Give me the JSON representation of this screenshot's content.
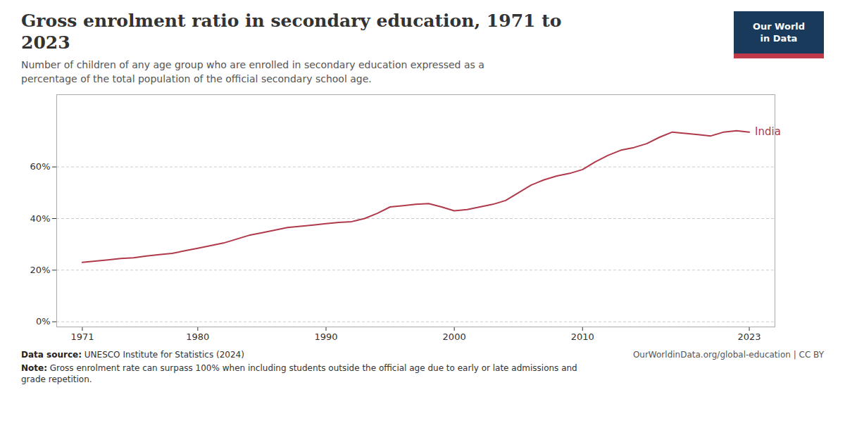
{
  "chart_data": {
    "type": "line",
    "title": "Gross enrolment ratio in secondary education, 1971 to\n2023",
    "subtitle": "Number of children of any age group who are enrolled in secondary education expressed as a\npercentage of the total population of the official secondary school age.",
    "annotations": [
      "Data source: UNESCO Institute for Statistics (2024)",
      "Note: Gross enrolment rate can surpass 100% when including students outside the official age due to early or late admissions and\ngrade repetition.",
      "OurWorldinData.org/global-education | CC BY",
      "Our World\nin Data"
    ],
    "x": [
      1971,
      1972,
      1973,
      1974,
      1975,
      1976,
      1977,
      1978,
      1979,
      1980,
      1981,
      1982,
      1983,
      1984,
      1985,
      1986,
      1987,
      1988,
      1989,
      1990,
      1991,
      1992,
      1993,
      1994,
      1995,
      1996,
      1997,
      1998,
      1999,
      2000,
      2001,
      2002,
      2003,
      2004,
      2005,
      2006,
      2007,
      2008,
      2009,
      2010,
      2011,
      2012,
      2013,
      2014,
      2015,
      2016,
      2017,
      2018,
      2019,
      2020,
      2021,
      2022,
      2023
    ],
    "series": [
      {
        "name": "India",
        "color": "#b03a4b",
        "values": [
          23.0,
          23.5,
          24.0,
          24.5,
          24.8,
          25.5,
          26.0,
          26.5,
          27.5,
          28.5,
          29.5,
          30.5,
          32.0,
          33.5,
          34.5,
          35.5,
          36.5,
          37.0,
          37.5,
          38.0,
          38.5,
          38.8,
          40.0,
          42.0,
          44.5,
          45.0,
          45.5,
          45.8,
          44.5,
          43.0,
          43.5,
          44.5,
          45.5,
          47.0,
          50.0,
          53.0,
          55.0,
          56.5,
          57.5,
          59.0,
          62.0,
          64.5,
          66.5,
          67.5,
          69.0,
          71.5,
          73.5,
          73.0,
          72.5,
          72.0,
          73.5,
          74.0,
          73.5
        ]
      }
    ],
    "xlim": [
      1969,
      2025
    ],
    "xticks": [
      1971,
      1980,
      1990,
      2000,
      2010,
      2023
    ],
    "ylim": [
      -2,
      88
    ],
    "yticks": [
      {
        "value": 0,
        "label": "0%"
      },
      {
        "value": 20,
        "label": "20%"
      },
      {
        "value": 40,
        "label": "40%"
      },
      {
        "value": 60,
        "label": "60%"
      }
    ],
    "grid": true
  }
}
